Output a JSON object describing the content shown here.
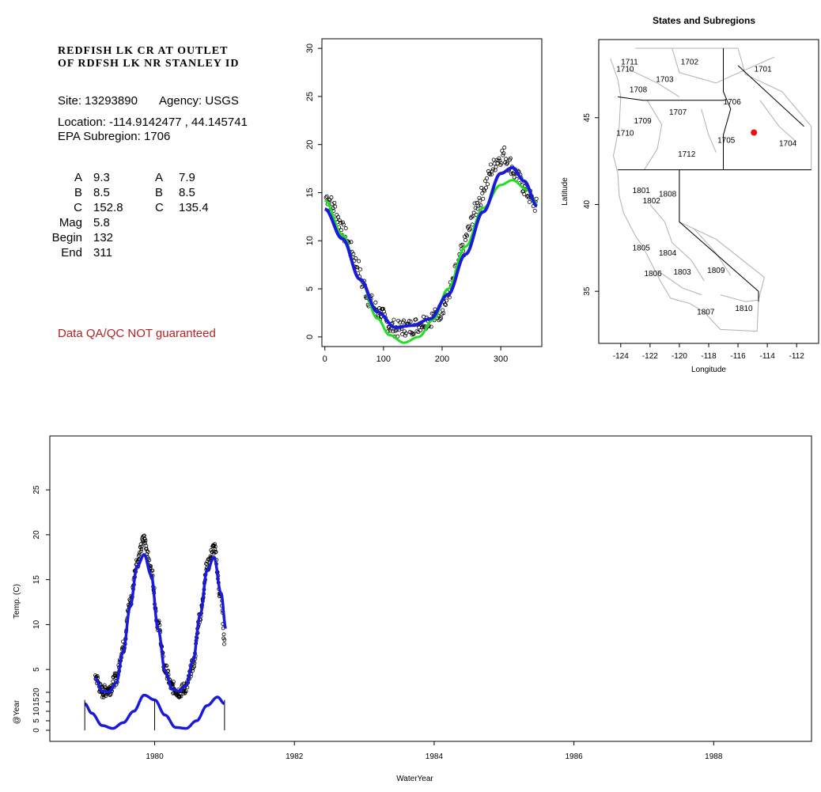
{
  "station": {
    "title_line1": "REDFISH LK CR AT OUTLET",
    "title_line2": "OF RDFSH LK NR STANLEY ID",
    "site_label": "Site: 13293890",
    "agency_label": "Agency: USGS",
    "location_label": "Location: -114.9142477 , 44.145741",
    "subregion_label": "EPA Subregion: 1706"
  },
  "params": {
    "left": [
      {
        "k": "A",
        "v": "9.3"
      },
      {
        "k": "B",
        "v": "8.5"
      },
      {
        "k": "C",
        "v": "152.8"
      },
      {
        "k": "Mag",
        "v": "5.8"
      },
      {
        "k": "Begin",
        "v": "132"
      },
      {
        "k": "End",
        "v": "311"
      }
    ],
    "right": [
      {
        "k": "A",
        "v": "7.9"
      },
      {
        "k": "B",
        "v": "8.5"
      },
      {
        "k": "C",
        "v": "135.4"
      }
    ]
  },
  "disclaimer": "Data QA/QC NOT guaranteed",
  "colors": {
    "fit_blue": "#1a1adb",
    "fit_green": "#22dd22",
    "point_red": "#ee1111",
    "warning": "#b22222",
    "map_gray": "#b0b0b0"
  },
  "chart_data": [
    {
      "type": "scatter",
      "title": "",
      "xlabel": "",
      "ylabel": "",
      "xlim": [
        -5,
        370
      ],
      "ylim": [
        -1,
        31
      ],
      "x_ticks": [
        "0",
        "100",
        "200",
        "300"
      ],
      "y_ticks": [
        "0",
        "5",
        "10",
        "15",
        "20",
        "25",
        "30"
      ],
      "series": [
        {
          "values_description": "observed",
          "x": [
            5,
            15,
            25,
            35,
            45,
            55,
            65,
            75,
            85,
            95,
            105,
            115,
            125,
            135,
            145,
            155,
            165,
            175,
            185,
            195,
            205,
            215,
            225,
            235,
            245,
            255,
            265,
            275,
            285,
            295,
            305,
            315,
            325,
            335,
            345,
            355,
            362
          ],
          "y": [
            14.5,
            13.5,
            12,
            10.5,
            9,
            7.5,
            5.5,
            4,
            3,
            2.5,
            1.5,
            1,
            0.8,
            1,
            1,
            1.2,
            1.5,
            1.8,
            2,
            2.5,
            3.5,
            5,
            7,
            9,
            11,
            13,
            14.5,
            16,
            17.5,
            18.5,
            19,
            18,
            17,
            16,
            15,
            14,
            13.5
          ]
        },
        {
          "name": "",
          "role": "blue-fit",
          "x": [
            0,
            30,
            60,
            90,
            120,
            150,
            180,
            210,
            240,
            270,
            300,
            320,
            340,
            362
          ],
          "y": [
            13.3,
            10.2,
            6.0,
            2.6,
            1.0,
            1.2,
            1.9,
            4.4,
            8.6,
            13.0,
            17.0,
            17.6,
            16.2,
            13.6
          ]
        },
        {
          "name": "",
          "role": "green-fit",
          "x": [
            0,
            30,
            60,
            90,
            110,
            135,
            160,
            185,
            210,
            240,
            270,
            300,
            320,
            345,
            362
          ],
          "y": [
            14.2,
            10.6,
            6.0,
            1.9,
            0.2,
            -0.6,
            0.0,
            1.8,
            5.0,
            9.4,
            13.4,
            15.8,
            16.3,
            15.3,
            13.9
          ]
        }
      ]
    },
    {
      "type": "map",
      "title": "States and Subregions",
      "xlabel": "Longitude",
      "ylabel": "Latitude",
      "xlim": [
        -125.5,
        -110.5
      ],
      "ylim": [
        32,
        49.5
      ],
      "x_ticks": [
        "-124",
        "-122",
        "-120",
        "-118",
        "-116",
        "-114",
        "-112"
      ],
      "y_ticks": [
        "35",
        "40",
        "45"
      ],
      "regions": [
        {
          "label": "1711",
          "lon": -123.4,
          "lat": 48.2
        },
        {
          "label": "1710",
          "lon": -123.7,
          "lat": 47.8
        },
        {
          "label": "1702",
          "lon": -119.3,
          "lat": 48.2
        },
        {
          "label": "1701",
          "lon": -114.3,
          "lat": 47.8
        },
        {
          "label": "1703",
          "lon": -121.0,
          "lat": 47.2
        },
        {
          "label": "1708",
          "lon": -122.8,
          "lat": 46.6
        },
        {
          "label": "1706",
          "lon": -116.4,
          "lat": 45.9
        },
        {
          "label": "1707",
          "lon": -120.1,
          "lat": 45.3
        },
        {
          "label": "1709",
          "lon": -122.5,
          "lat": 44.8
        },
        {
          "label": "1710",
          "lon": -123.7,
          "lat": 44.1
        },
        {
          "label": "1705",
          "lon": -116.8,
          "lat": 43.7
        },
        {
          "label": "1704",
          "lon": -112.6,
          "lat": 43.5
        },
        {
          "label": "1712",
          "lon": -119.5,
          "lat": 42.9
        },
        {
          "label": "1801",
          "lon": -122.6,
          "lat": 40.8
        },
        {
          "label": "1808",
          "lon": -120.8,
          "lat": 40.6
        },
        {
          "label": "1802",
          "lon": -121.9,
          "lat": 40.2
        },
        {
          "label": "1805",
          "lon": -122.6,
          "lat": 37.5
        },
        {
          "label": "1804",
          "lon": -120.8,
          "lat": 37.2
        },
        {
          "label": "1806",
          "lon": -121.8,
          "lat": 36.0
        },
        {
          "label": "1803",
          "lon": -119.8,
          "lat": 36.1
        },
        {
          "label": "1809",
          "lon": -117.5,
          "lat": 36.2
        },
        {
          "label": "1810",
          "lon": -115.6,
          "lat": 34.0
        },
        {
          "label": "1807",
          "lon": -118.2,
          "lat": 33.8
        }
      ],
      "site": {
        "lon": -114.9142477,
        "lat": 44.145741
      }
    },
    {
      "type": "line",
      "title": "",
      "xlabel": "WaterYear",
      "ylabel": "Temp. (C)",
      "ylabel_lower": "@Year",
      "xlim": [
        1978.5,
        1989.4
      ],
      "ylim": [
        -3,
        31
      ],
      "x_ticks": [
        "1980",
        "1982",
        "1984",
        "1986",
        "1988"
      ],
      "y_ticks": [
        "5",
        "10",
        "15",
        "20",
        "25"
      ],
      "y_ticks_lower": [
        "0",
        "5",
        "10",
        "15",
        "20"
      ],
      "series": [
        {
          "values_description": "observed",
          "x": [
            1979.15,
            1979.25,
            1979.35,
            1979.45,
            1979.55,
            1979.65,
            1979.75,
            1979.85,
            1979.95,
            1980.05,
            1980.15,
            1980.25,
            1980.35,
            1980.45,
            1980.55,
            1980.65,
            1980.75,
            1980.85,
            1980.95,
            1981.0
          ],
          "y": [
            4.2,
            2.5,
            2.8,
            4.0,
            7.5,
            12.5,
            17.0,
            19.5,
            16.0,
            10.0,
            5.0,
            3.0,
            2.5,
            3.0,
            5.5,
            11.0,
            16.5,
            18.5,
            13.0,
            8.0
          ]
        },
        {
          "name": "",
          "role": "blue-fit",
          "x": [
            1979.15,
            1979.25,
            1979.35,
            1979.45,
            1979.55,
            1979.65,
            1979.75,
            1979.85,
            1979.95,
            1980.05,
            1980.15,
            1980.25,
            1980.35,
            1980.45,
            1980.55,
            1980.65,
            1980.75,
            1980.85,
            1980.95,
            1981.02
          ],
          "y": [
            4.0,
            2.6,
            2.5,
            3.5,
            7.0,
            12.0,
            16.5,
            17.8,
            15.5,
            9.5,
            4.8,
            2.8,
            2.6,
            3.2,
            6.0,
            11.0,
            16.0,
            17.5,
            13.5,
            9.5
          ]
        },
        {
          "name": "",
          "role": "lower-fit",
          "x": [
            1979.0,
            1979.1,
            1979.25,
            1979.4,
            1979.55,
            1979.7,
            1979.85,
            1980.0,
            1980.15,
            1980.3,
            1980.45,
            1980.6,
            1980.75,
            1980.9,
            1981.0
          ],
          "y": [
            14.0,
            9.0,
            2.5,
            1.0,
            4.0,
            10.0,
            18.5,
            16.0,
            8.0,
            1.5,
            1.0,
            5.0,
            13.0,
            17.5,
            14.0
          ]
        }
      ]
    }
  ]
}
